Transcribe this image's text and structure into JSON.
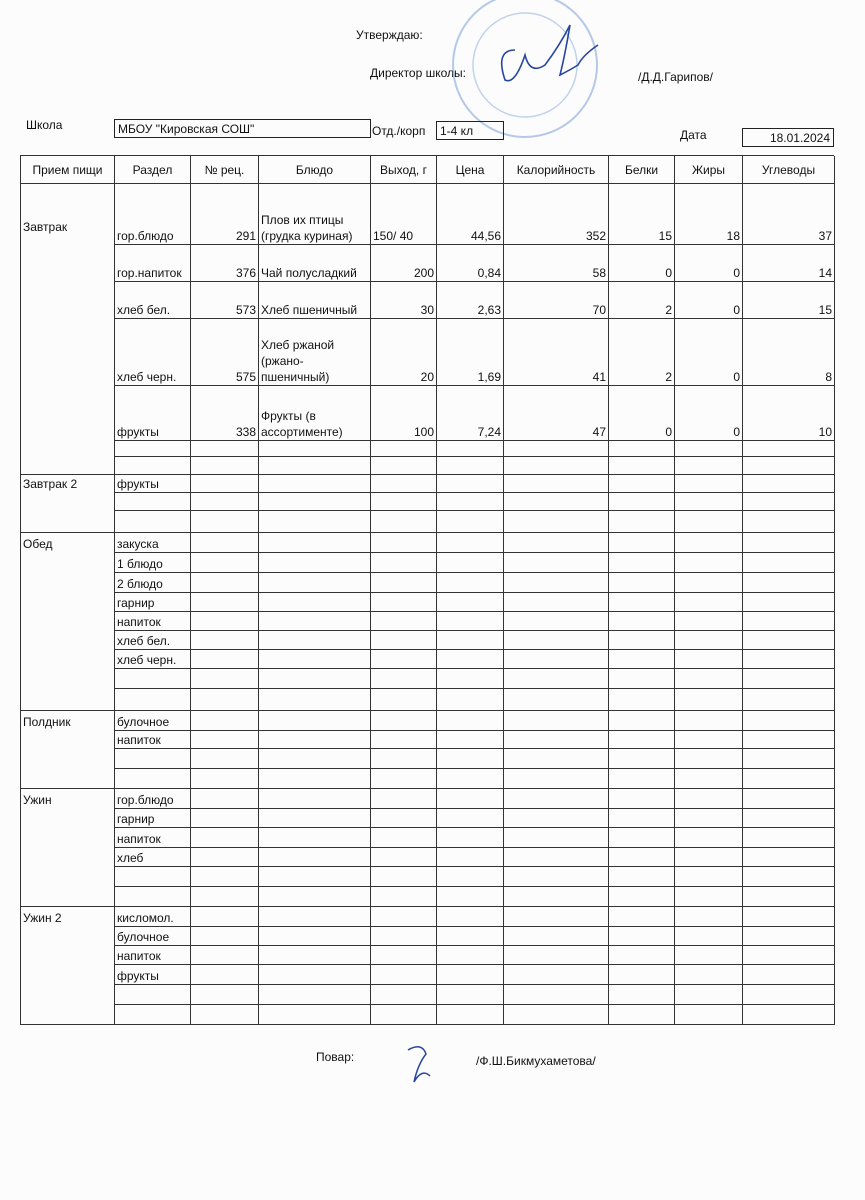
{
  "header": {
    "approve": "Утверждаю:",
    "director_label": "Директор школы:",
    "director_name": "/Д.Д.Гарипов/",
    "school_label": "Школа",
    "school": "МБОУ \"Кировская СОШ\"",
    "dept_label": "Отд./корп",
    "dept": "1-4 кл",
    "date_label": "Дата",
    "date": "18.01.2024"
  },
  "table": {
    "columns": [
      "Прием пищи",
      "Раздел",
      "№ рец.",
      "Блюдо",
      "Выход, г",
      "Цена",
      "Калорийность",
      "Белки",
      "Жиры",
      "Углеводы"
    ],
    "sections": [
      {
        "meal": "Завтрак",
        "rows": [
          {
            "section": "гор.блюдо",
            "recipe": 291,
            "dish": "Плов их птицы (грудка куриная)",
            "output": "150/  40",
            "price": "44,56",
            "kcal": 352,
            "protein": 15,
            "fat": 18,
            "carbs": 37
          },
          {
            "section": "гор.напиток",
            "recipe": 376,
            "dish": "Чай полусладкий",
            "output": 200,
            "price": "0,84",
            "kcal": 58,
            "protein": 0,
            "fat": 0,
            "carbs": 14
          },
          {
            "section": "хлеб бел.",
            "recipe": 573,
            "dish": "Хлеб пшеничный",
            "output": 30,
            "price": "2,63",
            "kcal": 70,
            "protein": 2,
            "fat": 0,
            "carbs": 15
          },
          {
            "section": "хлеб черн.",
            "recipe": 575,
            "dish": "Хлеб ржаной (ржано-пшеничный)",
            "output": 20,
            "price": "1,69",
            "kcal": 41,
            "protein": 2,
            "fat": 0,
            "carbs": 8
          },
          {
            "section": "фрукты",
            "recipe": 338,
            "dish": "Фрукты (в ассортименте)",
            "output": 100,
            "price": "7,24",
            "kcal": 47,
            "protein": 0,
            "fat": 0,
            "carbs": 10
          }
        ]
      },
      {
        "meal": "Завтрак 2",
        "rows": [
          {
            "section": "фрукты"
          }
        ]
      },
      {
        "meal": "Обед",
        "rows": [
          {
            "section": "закуска"
          },
          {
            "section": "1 блюдо"
          },
          {
            "section": "2 блюдо"
          },
          {
            "section": "гарнир"
          },
          {
            "section": "напиток"
          },
          {
            "section": "хлеб бел."
          },
          {
            "section": "хлеб черн."
          }
        ]
      },
      {
        "meal": "Полдник",
        "rows": [
          {
            "section": "булочное"
          },
          {
            "section": "напиток"
          }
        ]
      },
      {
        "meal": "Ужин",
        "rows": [
          {
            "section": "гор.блюдо"
          },
          {
            "section": "гарнир"
          },
          {
            "section": "напиток"
          },
          {
            "section": "хлеб"
          }
        ]
      },
      {
        "meal": "Ужин 2",
        "rows": [
          {
            "section": "кисломол."
          },
          {
            "section": "булочное"
          },
          {
            "section": "напиток"
          },
          {
            "section": "фрукты"
          }
        ]
      }
    ]
  },
  "footer": {
    "cook_label": "Повар:",
    "cook_name": "/Ф.Ш.Бикмухаметова/"
  }
}
